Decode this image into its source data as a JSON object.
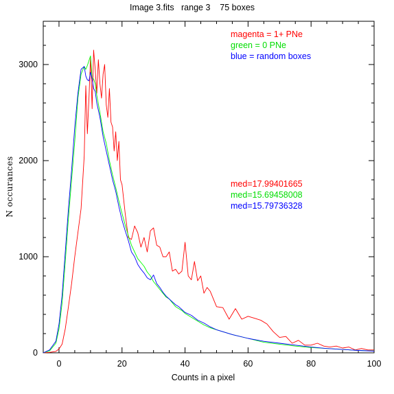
{
  "chart_data": {
    "type": "line",
    "title": "Image 3.fits   range 3    75 boxes",
    "xlabel": "Counts in a pixel",
    "ylabel": "N occurances",
    "xlim": [
      -5,
      100
    ],
    "ylim": [
      0,
      3450
    ],
    "xticks": [
      0,
      20,
      40,
      60,
      80,
      100
    ],
    "yticks": [
      0,
      1000,
      2000,
      3000
    ],
    "legend": [
      {
        "label": "magenta = 1+ PNe",
        "color": "#ff0000"
      },
      {
        "label": "green = 0 PNe",
        "color": "#00ff00"
      },
      {
        "label": "blue = random boxes",
        "color": "#0000ff"
      }
    ],
    "medians": [
      {
        "label": "med=17.99401665",
        "color": "#ff0000"
      },
      {
        "label": "med=15.69458008",
        "color": "#00ff00"
      },
      {
        "label": "med=15.79736328",
        "color": "#0000ff"
      }
    ],
    "series": [
      {
        "color": "#ff0000",
        "x": [
          -5,
          -3,
          -1,
          0,
          1,
          2,
          3,
          4,
          5,
          6,
          7,
          8,
          8.5,
          9,
          9.5,
          10,
          10.5,
          11,
          11.5,
          12,
          12.5,
          13,
          13.5,
          14,
          14.5,
          15,
          15.5,
          16,
          16.5,
          17,
          17.5,
          18,
          18.5,
          19,
          19.5,
          20,
          21,
          22,
          23,
          24,
          25,
          26,
          27,
          28,
          29,
          30,
          31,
          32,
          33,
          34,
          35,
          36,
          37,
          38,
          39,
          40,
          41,
          42,
          43,
          44,
          45,
          46,
          47,
          48,
          50,
          52,
          54,
          56,
          58,
          60,
          62,
          64,
          66,
          68,
          70,
          72,
          74,
          76,
          78,
          80,
          82,
          84,
          86,
          88,
          90,
          92,
          94,
          96,
          98,
          100
        ],
        "y": [
          0,
          5,
          15,
          40,
          90,
          250,
          480,
          720,
          1000,
          1250,
          1500,
          2050,
          2780,
          2280,
          2650,
          3080,
          2540,
          3150,
          2950,
          2700,
          3050,
          2800,
          2650,
          2900,
          3000,
          2580,
          2450,
          2750,
          2400,
          2350,
          2100,
          2300,
          2000,
          2200,
          1800,
          1750,
          1450,
          1200,
          1180,
          1320,
          1250,
          1100,
          1200,
          1050,
          1270,
          1300,
          1120,
          1100,
          1000,
          1000,
          1050,
          850,
          870,
          820,
          850,
          1150,
          800,
          760,
          950,
          750,
          800,
          620,
          680,
          640,
          480,
          470,
          350,
          460,
          350,
          380,
          360,
          340,
          300,
          220,
          160,
          170,
          100,
          130,
          80,
          80,
          100,
          70,
          60,
          70,
          50,
          60,
          30,
          45,
          30,
          30
        ]
      },
      {
        "color": "#00ff00",
        "x": [
          -5,
          -3,
          -1,
          0,
          1,
          2,
          3,
          4,
          5,
          6,
          7,
          8,
          8.5,
          9,
          9.5,
          10,
          10.5,
          11,
          11.5,
          12,
          13,
          14,
          15,
          16,
          17,
          18,
          19,
          20,
          21,
          22,
          23,
          24,
          25,
          26,
          27,
          28,
          29,
          30,
          31,
          32,
          33,
          34,
          35,
          36,
          37,
          38,
          39,
          40,
          42,
          44,
          46,
          48,
          50,
          55,
          60,
          65,
          70,
          75,
          80,
          85,
          90,
          95,
          100
        ],
        "y": [
          0,
          20,
          100,
          250,
          520,
          950,
          1400,
          1800,
          2200,
          2650,
          2900,
          2980,
          2950,
          2990,
          3040,
          3090,
          2860,
          2850,
          2800,
          2680,
          2500,
          2300,
          2180,
          2000,
          1850,
          1720,
          1580,
          1450,
          1330,
          1220,
          1120,
          1050,
          980,
          940,
          900,
          840,
          800,
          740,
          700,
          660,
          620,
          580,
          560,
          520,
          480,
          460,
          440,
          410,
          370,
          330,
          290,
          260,
          240,
          190,
          150,
          110,
          90,
          70,
          55,
          45,
          35,
          25,
          20
        ]
      },
      {
        "color": "#0000ff",
        "x": [
          -5,
          -3,
          -1,
          0,
          1,
          2,
          3,
          4,
          5,
          6,
          7,
          8,
          8.5,
          9,
          9.5,
          10,
          10.5,
          11,
          11.5,
          12,
          13,
          14,
          15,
          16,
          17,
          18,
          19,
          20,
          21,
          22,
          23,
          24,
          25,
          26,
          27,
          28,
          29,
          30,
          31,
          32,
          33,
          34,
          35,
          36,
          37,
          38,
          39,
          40,
          42,
          44,
          46,
          48,
          50,
          55,
          60,
          65,
          70,
          75,
          80,
          85,
          90,
          95,
          100
        ],
        "y": [
          0,
          30,
          120,
          300,
          600,
          1050,
          1500,
          1900,
          2350,
          2700,
          2950,
          2980,
          2880,
          2840,
          2830,
          2920,
          2850,
          2750,
          2720,
          2600,
          2450,
          2250,
          2100,
          1950,
          1800,
          1680,
          1520,
          1380,
          1270,
          1170,
          1050,
          1000,
          920,
          870,
          830,
          780,
          760,
          810,
          720,
          680,
          630,
          590,
          560,
          530,
          500,
          480,
          450,
          420,
          390,
          340,
          310,
          270,
          240,
          190,
          150,
          120,
          100,
          80,
          60,
          45,
          35,
          25,
          18
        ]
      }
    ]
  }
}
